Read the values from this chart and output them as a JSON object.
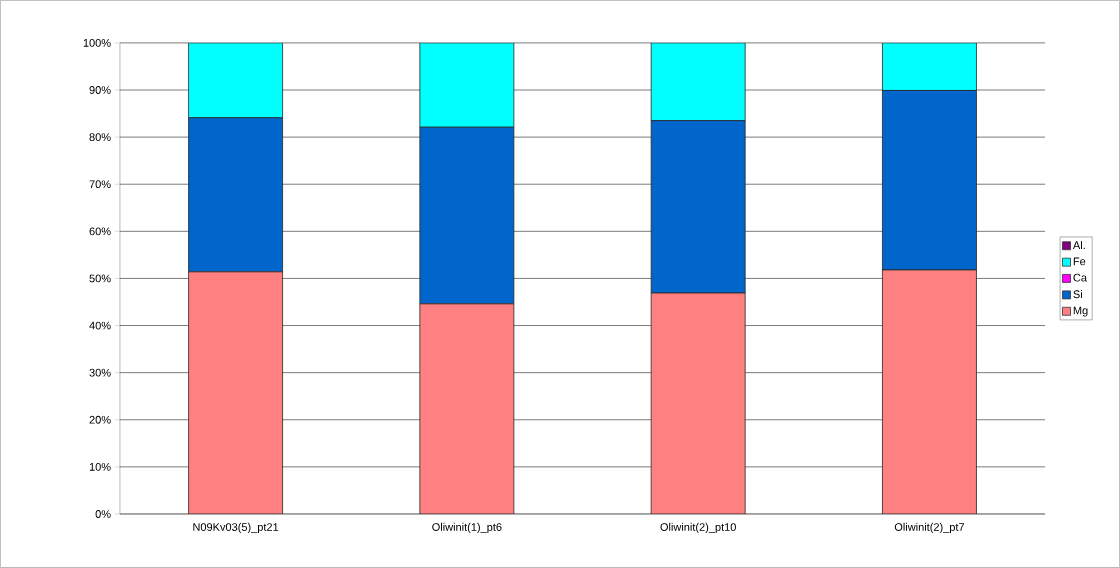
{
  "chart_data": {
    "type": "bar",
    "stacked": true,
    "categories": [
      "N09Kv03(5)_pt21",
      "Oliwinit(1)_pt6",
      "Oliwinit(2)_pt10",
      "Oliwinit(2)_pt7"
    ],
    "series": [
      {
        "name": "Mg",
        "color": "#ff8080",
        "values": [
          51.4,
          44.6,
          46.9,
          51.8
        ]
      },
      {
        "name": "Si",
        "color": "#0066cc",
        "values": [
          32.7,
          37.5,
          36.6,
          38.1
        ]
      },
      {
        "name": "Ca",
        "color": "#ff00ff",
        "values": [
          0,
          0,
          0,
          0
        ]
      },
      {
        "name": "Fe",
        "color": "#00ffff",
        "values": [
          15.9,
          17.9,
          16.5,
          10.1
        ]
      },
      {
        "name": "Al.",
        "color": "#800080",
        "values": [
          0,
          0,
          0,
          0
        ]
      }
    ],
    "ylim": [
      0,
      100
    ],
    "yticks": [
      {
        "value": 0,
        "label": "0%"
      },
      {
        "value": 10,
        "label": "10%"
      },
      {
        "value": 20,
        "label": "20%"
      },
      {
        "value": 30,
        "label": "30%"
      },
      {
        "value": 40,
        "label": "40%"
      },
      {
        "value": 50,
        "label": "50%"
      },
      {
        "value": 60,
        "label": "60%"
      },
      {
        "value": 70,
        "label": "70%"
      },
      {
        "value": 80,
        "label": "80%"
      },
      {
        "value": 90,
        "label": "90%"
      },
      {
        "value": 100,
        "label": "100%"
      }
    ],
    "grid": "y",
    "legend": "right"
  }
}
